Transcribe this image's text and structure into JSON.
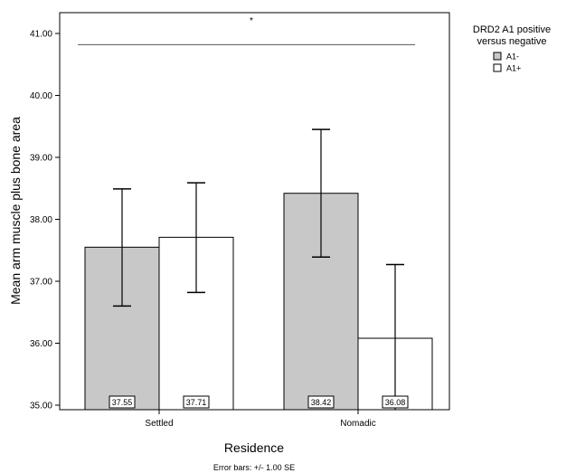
{
  "chart_data": {
    "type": "bar",
    "xlabel": "Residence",
    "ylabel": "Mean arm muscle plus bone area",
    "footnote": "Error bars: +/- 1.00 SE",
    "categories": [
      "Settled",
      "Nomadic"
    ],
    "ylim": [
      35.0,
      41.15
    ],
    "yticks": [
      "35.00",
      "36.00",
      "37.00",
      "38.00",
      "39.00",
      "40.00",
      "41.00"
    ],
    "grid": false,
    "legend": {
      "title_line1": "DRD2 A1 positive",
      "title_line2": "versus negative",
      "placement": "right-outside"
    },
    "series": [
      {
        "name": "A1-",
        "color": "#c8c8c8",
        "values": [
          37.55,
          38.42
        ],
        "labels": [
          "37.55",
          "38.42"
        ],
        "error_low": [
          36.6,
          37.39
        ],
        "error_high": [
          38.49,
          39.45
        ]
      },
      {
        "name": "A1+",
        "color": "#ffffff",
        "values": [
          37.71,
          36.08
        ],
        "labels": [
          "37.71",
          "36.08"
        ],
        "error_low": [
          36.82,
          34.9
        ],
        "error_high": [
          38.59,
          37.27
        ]
      }
    ],
    "significance": {
      "marker": "*",
      "line_value": 40.82
    }
  }
}
